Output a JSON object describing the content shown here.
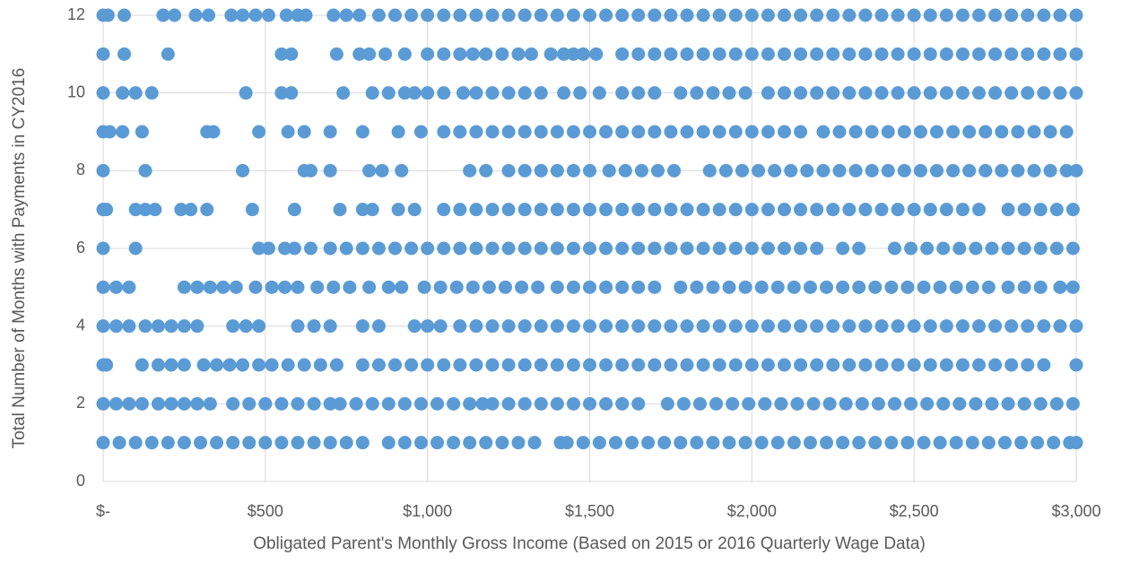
{
  "chart_data": {
    "type": "scatter",
    "x_label": "Obligated Parent's Monthly Gross Income (Based on 2015 or 2016 Quarterly Wage Data)",
    "y_label": "Total  Number of Months with Payments in CY2016",
    "color": "#5b9bd5",
    "grid": true,
    "xlim": [
      0,
      3000
    ],
    "xticks": [
      {
        "value": 0,
        "label": "$-"
      },
      {
        "value": 500,
        "label": "$500"
      },
      {
        "value": 1000,
        "label": "$1,000"
      },
      {
        "value": 1500,
        "label": "$1,500"
      },
      {
        "value": 2000,
        "label": "$2,000"
      },
      {
        "value": 2500,
        "label": "$2,500"
      },
      {
        "value": 3000,
        "label": "$3,000"
      }
    ],
    "ylim": [
      0,
      12
    ],
    "yticks": [
      0,
      2,
      4,
      6,
      8,
      10,
      12
    ],
    "rows": [
      {
        "y": 12,
        "x": [
          0,
          15,
          65,
          185,
          220,
          285,
          325,
          395,
          430,
          470,
          510,
          565,
          600,
          625,
          710,
          750,
          790,
          850,
          900,
          950,
          1000,
          1050,
          1100,
          1150,
          1200,
          1250,
          1300,
          1350,
          1400,
          1450,
          1500,
          1550,
          1600,
          1650,
          1700,
          1750,
          1800,
          1850,
          1900,
          1950,
          2000,
          2050,
          2100,
          2150,
          2200,
          2250,
          2300,
          2350,
          2400,
          2450,
          2500,
          2550,
          2600,
          2650,
          2700,
          2750,
          2800,
          2850,
          2900,
          2950,
          3000
        ]
      },
      {
        "y": 11,
        "x": [
          0,
          65,
          200,
          550,
          580,
          720,
          790,
          820,
          870,
          930,
          1000,
          1050,
          1100,
          1140,
          1180,
          1230,
          1280,
          1320,
          1380,
          1420,
          1450,
          1480,
          1520,
          1600,
          1650,
          1700,
          1750,
          1800,
          1850,
          1900,
          1950,
          2000,
          2050,
          2100,
          2150,
          2200,
          2250,
          2300,
          2350,
          2400,
          2450,
          2500,
          2550,
          2600,
          2650,
          2700,
          2750,
          2800,
          2850,
          2900,
          2950,
          3000
        ]
      },
      {
        "y": 10,
        "x": [
          0,
          60,
          100,
          150,
          440,
          550,
          580,
          740,
          830,
          880,
          930,
          960,
          1000,
          1050,
          1110,
          1150,
          1200,
          1250,
          1300,
          1350,
          1420,
          1470,
          1530,
          1600,
          1650,
          1700,
          1780,
          1830,
          1880,
          1930,
          1980,
          2050,
          2100,
          2150,
          2200,
          2250,
          2300,
          2350,
          2400,
          2450,
          2500,
          2550,
          2600,
          2650,
          2700,
          2750,
          2800,
          2850,
          2900,
          2950,
          3000
        ]
      },
      {
        "y": 9,
        "x": [
          0,
          20,
          60,
          120,
          320,
          340,
          480,
          570,
          620,
          700,
          800,
          910,
          980,
          1050,
          1100,
          1150,
          1200,
          1250,
          1300,
          1350,
          1400,
          1450,
          1500,
          1550,
          1600,
          1650,
          1700,
          1750,
          1800,
          1850,
          1900,
          1950,
          2000,
          2050,
          2100,
          2150,
          2220,
          2270,
          2320,
          2370,
          2420,
          2470,
          2520,
          2570,
          2620,
          2670,
          2720,
          2770,
          2820,
          2870,
          2920,
          2970
        ]
      },
      {
        "y": 8,
        "x": [
          0,
          130,
          430,
          620,
          640,
          700,
          820,
          860,
          920,
          1130,
          1180,
          1250,
          1300,
          1350,
          1400,
          1450,
          1500,
          1560,
          1610,
          1660,
          1710,
          1760,
          1870,
          1920,
          1970,
          2020,
          2070,
          2120,
          2170,
          2220,
          2270,
          2320,
          2370,
          2420,
          2470,
          2520,
          2570,
          2620,
          2670,
          2720,
          2770,
          2820,
          2870,
          2920,
          2970,
          3000
        ]
      },
      {
        "y": 7,
        "x": [
          0,
          10,
          100,
          130,
          160,
          240,
          270,
          320,
          460,
          590,
          730,
          800,
          830,
          910,
          960,
          1050,
          1100,
          1150,
          1200,
          1250,
          1300,
          1350,
          1400,
          1450,
          1500,
          1550,
          1600,
          1650,
          1700,
          1750,
          1800,
          1850,
          1900,
          1950,
          2000,
          2050,
          2100,
          2150,
          2200,
          2250,
          2300,
          2350,
          2400,
          2450,
          2500,
          2550,
          2600,
          2650,
          2700,
          2790,
          2840,
          2890,
          2940,
          2990
        ]
      },
      {
        "y": 6,
        "x": [
          0,
          100,
          480,
          510,
          560,
          590,
          640,
          700,
          750,
          800,
          850,
          900,
          950,
          1000,
          1050,
          1100,
          1150,
          1200,
          1250,
          1300,
          1350,
          1400,
          1450,
          1500,
          1550,
          1600,
          1650,
          1700,
          1750,
          1800,
          1850,
          1900,
          1950,
          2000,
          2050,
          2100,
          2150,
          2200,
          2280,
          2330,
          2440,
          2490,
          2540,
          2590,
          2640,
          2690,
          2740,
          2790,
          2840,
          2890,
          2940,
          2990
        ]
      },
      {
        "y": 5,
        "x": [
          0,
          40,
          80,
          250,
          290,
          330,
          370,
          410,
          470,
          520,
          560,
          600,
          660,
          710,
          760,
          820,
          880,
          920,
          990,
          1040,
          1090,
          1140,
          1190,
          1240,
          1290,
          1340,
          1400,
          1450,
          1500,
          1550,
          1600,
          1650,
          1700,
          1780,
          1830,
          1880,
          1930,
          1980,
          2030,
          2080,
          2130,
          2180,
          2230,
          2280,
          2330,
          2380,
          2430,
          2480,
          2530,
          2580,
          2630,
          2680,
          2730,
          2790,
          2840,
          2890,
          2950,
          2990
        ]
      },
      {
        "y": 4,
        "x": [
          0,
          40,
          80,
          130,
          170,
          210,
          250,
          290,
          400,
          440,
          480,
          600,
          650,
          700,
          800,
          850,
          960,
          1000,
          1040,
          1100,
          1150,
          1200,
          1250,
          1300,
          1350,
          1400,
          1450,
          1500,
          1550,
          1600,
          1650,
          1700,
          1750,
          1800,
          1850,
          1900,
          1950,
          2000,
          2050,
          2100,
          2150,
          2200,
          2250,
          2300,
          2350,
          2400,
          2450,
          2500,
          2550,
          2600,
          2650,
          2700,
          2750,
          2800,
          2850,
          2900,
          2950,
          3000
        ]
      },
      {
        "y": 3,
        "x": [
          0,
          10,
          120,
          170,
          210,
          250,
          310,
          350,
          390,
          430,
          480,
          520,
          570,
          620,
          670,
          720,
          800,
          850,
          900,
          950,
          1000,
          1050,
          1100,
          1150,
          1200,
          1250,
          1300,
          1350,
          1400,
          1450,
          1500,
          1550,
          1600,
          1650,
          1700,
          1750,
          1800,
          1850,
          1900,
          1950,
          2000,
          2050,
          2100,
          2150,
          2200,
          2250,
          2300,
          2350,
          2400,
          2450,
          2500,
          2550,
          2600,
          2650,
          2700,
          2750,
          2800,
          2850,
          2900,
          3000
        ]
      },
      {
        "y": 2,
        "x": [
          0,
          40,
          80,
          120,
          170,
          210,
          250,
          290,
          330,
          400,
          450,
          500,
          550,
          600,
          650,
          700,
          730,
          780,
          830,
          880,
          930,
          980,
          1030,
          1080,
          1130,
          1170,
          1200,
          1250,
          1300,
          1350,
          1400,
          1450,
          1500,
          1550,
          1600,
          1650,
          1740,
          1790,
          1840,
          1890,
          1940,
          1990,
          2040,
          2090,
          2140,
          2190,
          2240,
          2290,
          2340,
          2390,
          2440,
          2490,
          2540,
          2590,
          2640,
          2690,
          2740,
          2790,
          2840,
          2890,
          2940,
          2990
        ]
      },
      {
        "y": 1,
        "x": [
          0,
          50,
          100,
          150,
          200,
          250,
          300,
          350,
          400,
          450,
          500,
          550,
          600,
          650,
          700,
          750,
          800,
          880,
          930,
          980,
          1030,
          1080,
          1130,
          1180,
          1230,
          1280,
          1330,
          1410,
          1430,
          1480,
          1530,
          1580,
          1630,
          1680,
          1730,
          1780,
          1830,
          1880,
          1930,
          1980,
          2030,
          2080,
          2130,
          2180,
          2230,
          2280,
          2330,
          2380,
          2430,
          2480,
          2530,
          2580,
          2630,
          2680,
          2730,
          2780,
          2830,
          2880,
          2930,
          2980,
          3000
        ]
      }
    ]
  }
}
